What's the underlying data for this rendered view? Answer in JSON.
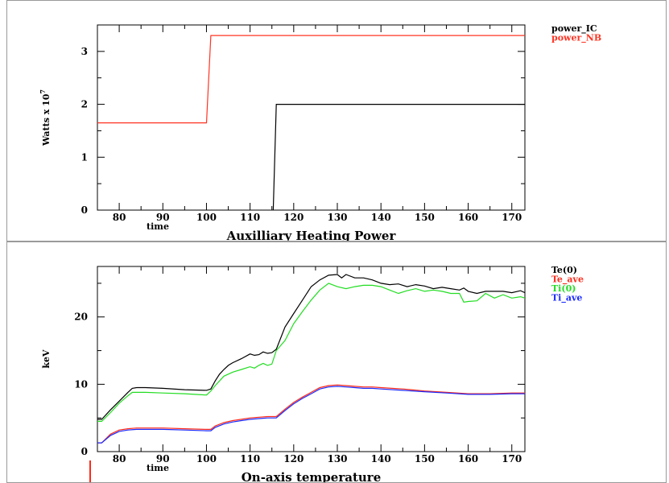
{
  "chart_data": [
    {
      "type": "line",
      "title": "Auxilliary Heating Power",
      "xlabel": "time",
      "ylabel": "Watts x 10",
      "ylabel_exponent": "7",
      "xlim": [
        75,
        173
      ],
      "ylim": [
        0,
        3.5
      ],
      "xticks": [
        80,
        90,
        100,
        110,
        120,
        130,
        140,
        150,
        160,
        170
      ],
      "yticks": [
        0,
        1,
        2,
        3
      ],
      "legend_position": "right",
      "series": [
        {
          "name": "power_IC",
          "color": "#000000",
          "x": [
            75,
            115,
            115.3,
            116,
            173
          ],
          "y": [
            -0.5,
            -0.5,
            0,
            2,
            2
          ]
        },
        {
          "name": "power_NB",
          "color": "#ff3322",
          "x": [
            75,
            100,
            101,
            173
          ],
          "y": [
            1.65,
            1.65,
            3.3,
            3.3
          ]
        }
      ]
    },
    {
      "type": "line",
      "title": "On-axis temperature",
      "xlabel": "time",
      "ylabel": "keV",
      "xlim": [
        75,
        173
      ],
      "ylim": [
        0,
        27.5
      ],
      "xticks": [
        80,
        90,
        100,
        110,
        120,
        130,
        140,
        150,
        160,
        170
      ],
      "yticks": [
        0,
        10,
        20
      ],
      "legend_position": "right",
      "series": [
        {
          "name": "Te(0)",
          "color": "#000000",
          "x": [
            75,
            76,
            78,
            80,
            82,
            83,
            84,
            86,
            90,
            95,
            100,
            101,
            102,
            103,
            104,
            105,
            106,
            108,
            110,
            111,
            112,
            113,
            114,
            115,
            116,
            118,
            120,
            122,
            124,
            126,
            128,
            130,
            131,
            132,
            134,
            136,
            138,
            140,
            142,
            144,
            146,
            148,
            150,
            152,
            154,
            156,
            158,
            159,
            160,
            162,
            164,
            166,
            168,
            170,
            172,
            173
          ],
          "y": [
            4.8,
            4.8,
            6.2,
            7.5,
            8.8,
            9.4,
            9.5,
            9.5,
            9.4,
            9.2,
            9.1,
            9.3,
            10.5,
            11.5,
            12.2,
            12.8,
            13.2,
            13.8,
            14.5,
            14.3,
            14.4,
            14.8,
            14.6,
            14.7,
            15.2,
            18.5,
            20.5,
            22.5,
            24.5,
            25.5,
            26.2,
            26.3,
            25.8,
            26.3,
            25.8,
            25.8,
            25.5,
            25.0,
            24.8,
            24.9,
            24.5,
            24.8,
            24.6,
            24.2,
            24.4,
            24.2,
            24.0,
            24.3,
            23.8,
            23.5,
            23.8,
            23.8,
            23.8,
            23.6,
            23.9,
            23.6
          ]
        },
        {
          "name": "Te_ave",
          "color": "#ff2a1a",
          "x": [
            75,
            76,
            78,
            80,
            82,
            84,
            86,
            90,
            95,
            100,
            101,
            102,
            104,
            106,
            108,
            110,
            112,
            114,
            116,
            118,
            120,
            122,
            124,
            126,
            128,
            130,
            132,
            134,
            136,
            138,
            140,
            145,
            150,
            155,
            160,
            165,
            170,
            173
          ],
          "y": [
            1.3,
            1.3,
            2.6,
            3.2,
            3.4,
            3.5,
            3.5,
            3.5,
            3.4,
            3.3,
            3.3,
            3.8,
            4.3,
            4.6,
            4.8,
            5.0,
            5.1,
            5.2,
            5.2,
            6.3,
            7.3,
            8.1,
            8.8,
            9.5,
            9.8,
            9.9,
            9.8,
            9.7,
            9.6,
            9.6,
            9.5,
            9.3,
            9.0,
            8.8,
            8.6,
            8.6,
            8.7,
            8.7
          ]
        },
        {
          "name": "Ti(0)",
          "color": "#22dd22",
          "x": [
            75,
            76,
            78,
            80,
            82,
            83,
            84,
            86,
            90,
            95,
            100,
            101,
            102,
            103,
            104,
            106,
            108,
            110,
            111,
            112,
            113,
            114,
            115,
            116,
            118,
            120,
            122,
            124,
            126,
            128,
            130,
            132,
            134,
            136,
            138,
            140,
            142,
            144,
            146,
            148,
            150,
            152,
            154,
            156,
            158,
            159,
            160,
            162,
            164,
            166,
            168,
            170,
            172,
            173
          ],
          "y": [
            4.5,
            4.5,
            5.8,
            7.2,
            8.3,
            8.8,
            8.8,
            8.8,
            8.7,
            8.6,
            8.4,
            9.0,
            9.8,
            10.5,
            11.2,
            11.8,
            12.2,
            12.6,
            12.4,
            12.8,
            13.1,
            12.8,
            13.0,
            15.0,
            16.5,
            19.0,
            20.8,
            22.5,
            24.0,
            25.0,
            24.5,
            24.2,
            24.5,
            24.7,
            24.7,
            24.5,
            24.0,
            23.5,
            23.9,
            24.2,
            23.8,
            24.0,
            23.8,
            23.5,
            23.5,
            22.2,
            22.3,
            22.4,
            23.5,
            22.8,
            23.3,
            22.8,
            23.0,
            22.8
          ]
        },
        {
          "name": "Ti_ave",
          "color": "#1a2aff",
          "x": [
            75,
            76,
            78,
            80,
            82,
            84,
            86,
            90,
            95,
            100,
            101,
            102,
            104,
            106,
            108,
            110,
            112,
            114,
            116,
            118,
            120,
            122,
            124,
            126,
            128,
            130,
            132,
            134,
            136,
            138,
            140,
            145,
            150,
            155,
            160,
            165,
            170,
            173
          ],
          "y": [
            1.3,
            1.3,
            2.4,
            3.0,
            3.2,
            3.3,
            3.3,
            3.3,
            3.2,
            3.1,
            3.1,
            3.6,
            4.1,
            4.4,
            4.6,
            4.8,
            4.9,
            5.0,
            5.0,
            6.1,
            7.1,
            7.9,
            8.6,
            9.3,
            9.6,
            9.7,
            9.6,
            9.5,
            9.4,
            9.4,
            9.3,
            9.1,
            8.9,
            8.7,
            8.5,
            8.5,
            8.6,
            8.6
          ]
        }
      ]
    }
  ]
}
